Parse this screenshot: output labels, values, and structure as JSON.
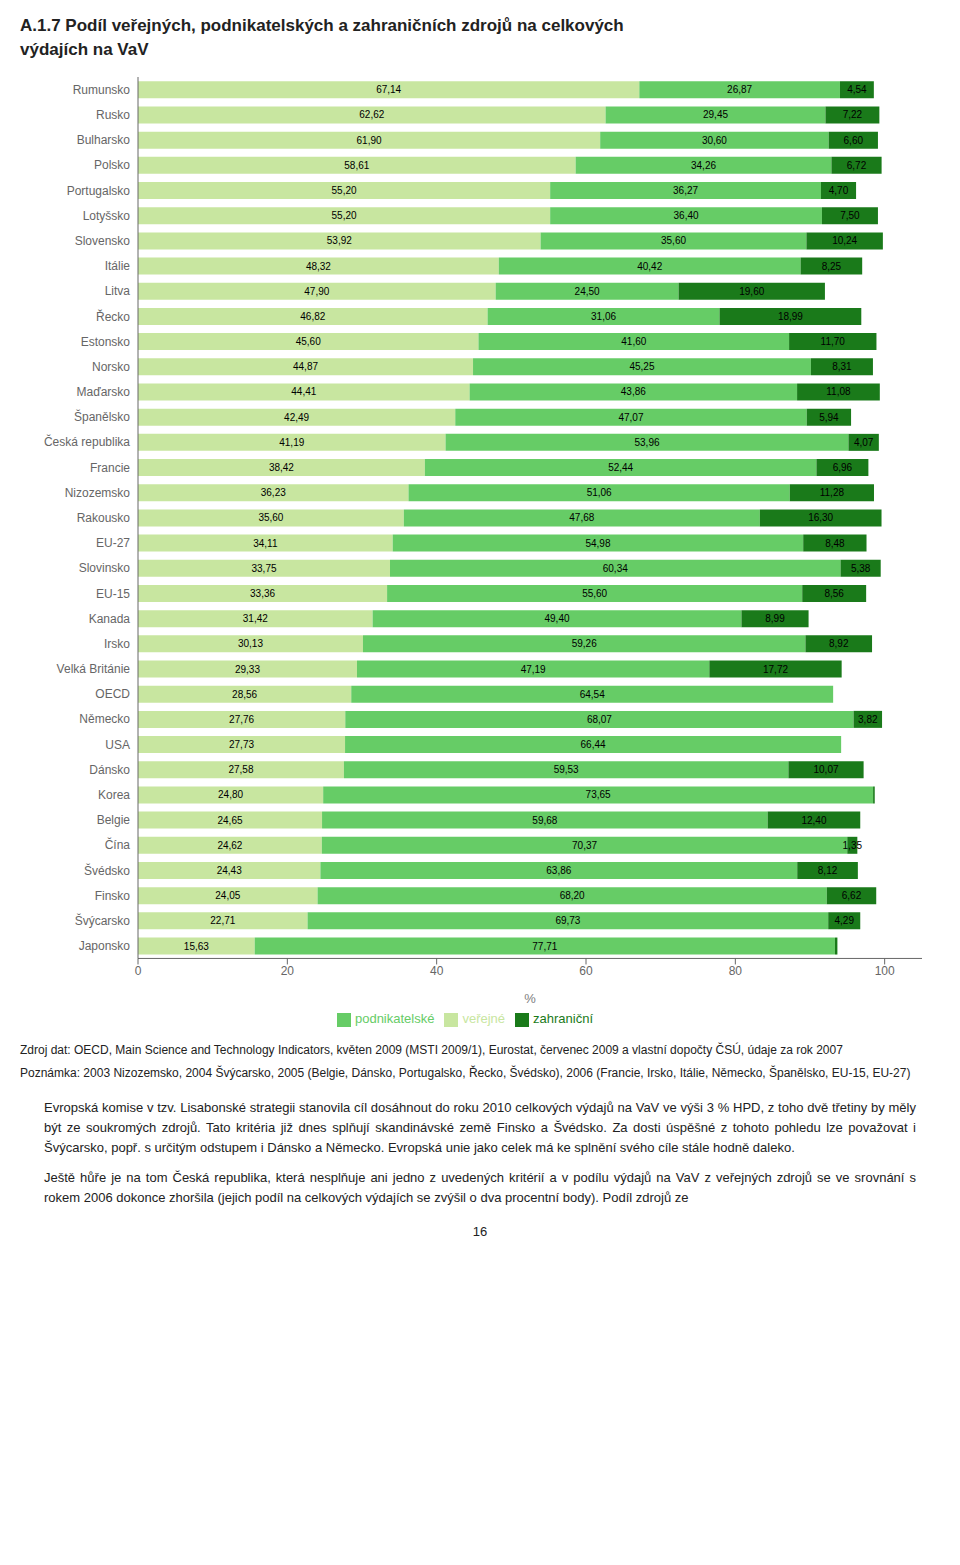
{
  "chart_data": {
    "type": "bar",
    "orientation": "horizontal",
    "stacked": true,
    "data_labels": true,
    "legend": "bottom",
    "grid": false,
    "title": [
      "A.1.7 Podíl veřejných, podnikatelských a zahraničních zdrojů na celkových",
      "výdajích na VaV"
    ],
    "xlabel": "%",
    "xlim": [
      0,
      105
    ],
    "xticks": [
      0,
      20,
      40,
      60,
      80,
      100
    ],
    "categories": [
      "Rumunsko",
      "Rusko",
      "Bulharsko",
      "Polsko",
      "Portugalsko",
      "Lotyšsko",
      "Slovensko",
      "Itálie",
      "Litva",
      "Řecko",
      "Estonsko",
      "Norsko",
      "Maďarsko",
      "Španělsko",
      "Česká republika",
      "Francie",
      "Nizozemsko",
      "Rakousko",
      "EU-27",
      "Slovinsko",
      "EU-15",
      "Kanada",
      "Irsko",
      "Velká Británie",
      "OECD",
      "Německo",
      "USA",
      "Dánsko",
      "Korea",
      "Belgie",
      "Čína",
      "Švédsko",
      "Finsko",
      "Švýcarsko",
      "Japonsko"
    ],
    "series": [
      {
        "name": "veřejné",
        "color": "#c8e6a0",
        "values": [
          67.14,
          62.62,
          61.9,
          58.61,
          55.2,
          55.2,
          53.92,
          48.32,
          47.9,
          46.82,
          45.6,
          44.87,
          44.41,
          42.49,
          41.19,
          38.42,
          36.23,
          35.6,
          34.11,
          33.75,
          33.36,
          31.42,
          30.13,
          29.33,
          28.56,
          27.76,
          27.73,
          27.58,
          24.8,
          24.65,
          24.62,
          24.43,
          24.05,
          22.71,
          15.63
        ],
        "value_labels": [
          "67,14",
          "62,62",
          "61,90",
          "58,61",
          "55,20",
          "55,20",
          "53,92",
          "48,32",
          "47,90",
          "46,82",
          "45,60",
          "44,87",
          "44,41",
          "42,49",
          "41,19",
          "38,42",
          "36,23",
          "35,60",
          "34,11",
          "33,75",
          "33,36",
          "31,42",
          "30,13",
          "29,33",
          "28,56",
          "27,76",
          "27,73",
          "27,58",
          "24,80",
          "24,65",
          "24,62",
          "24,43",
          "24,05",
          "22,71",
          "15,63"
        ]
      },
      {
        "name": "podnikatelské",
        "color": "#66cc66",
        "values": [
          26.87,
          29.45,
          30.6,
          34.26,
          36.27,
          36.4,
          35.6,
          40.42,
          24.5,
          31.06,
          41.6,
          45.25,
          43.86,
          47.07,
          53.96,
          52.44,
          51.06,
          47.68,
          54.98,
          60.34,
          55.6,
          49.4,
          59.26,
          47.19,
          64.54,
          68.07,
          66.44,
          59.53,
          73.65,
          59.68,
          70.37,
          63.86,
          68.2,
          69.73,
          77.71
        ],
        "value_labels": [
          "26,87",
          "29,45",
          "30,60",
          "34,26",
          "36,27",
          "36,40",
          "35,60",
          "40,42",
          "24,50",
          "31,06",
          "41,60",
          "45,25",
          "43,86",
          "47,07",
          "53,96",
          "52,44",
          "51,06",
          "47,68",
          "54,98",
          "60,34",
          "55,60",
          "49,40",
          "59,26",
          "47,19",
          "64,54",
          "68,07",
          "66,44",
          "59,53",
          "73,65",
          "59,68",
          "70,37",
          "63,86",
          "68,20",
          "69,73",
          "77,71"
        ]
      },
      {
        "name": "zahraniční",
        "color": "#1a7a1a",
        "values": [
          4.54,
          7.22,
          6.6,
          6.72,
          4.7,
          7.5,
          10.24,
          8.25,
          19.6,
          18.99,
          11.7,
          8.31,
          11.08,
          5.94,
          4.07,
          6.96,
          11.28,
          16.3,
          8.48,
          5.38,
          8.56,
          8.99,
          8.92,
          17.72,
          0.0,
          3.82,
          0.0,
          10.07,
          0.22,
          12.4,
          1.35,
          8.12,
          6.62,
          4.29,
          0.33
        ],
        "value_labels": [
          "4,54",
          "7,22",
          "6,60",
          "6,72",
          "4,70",
          "7,50",
          "10,24",
          "8,25",
          "19,60",
          "18,99",
          "11,70",
          "8,31",
          "11,08",
          "5,94",
          "4,07",
          "6,96",
          "11,28",
          "16,30",
          "8,48",
          "5,38",
          "8,56",
          "8,99",
          "8,92",
          "17,72",
          null,
          "3,82",
          null,
          "10,07",
          null,
          "12,40",
          "1,35",
          "8,12",
          "6,62",
          "4,29",
          null
        ]
      }
    ],
    "annotations": [
      "Zdroj dat: OECD, Main Science and Technology Indicators, květen 2009 (MSTI 2009/1), Eurostat, červenec 2009 a vlastní dopočty ČSÚ, údaje za rok 2007",
      "Poznámka: 2003 Nizozemsko, 2004 Švýcarsko, 2005 (Belgie, Dánsko, Portugalsko, Řecko, Švédsko), 2006 (Francie, Irsko, Itálie, Německo, Španělsko, EU-15, EU-27)",
      "Evropská komise v tzv. Lisabonské strategii stanovila cíl dosáhnout do roku 2010 celkových výdajů na VaV ve výši 3 % HPD, z toho dvě třetiny by měly být ze soukromých zdrojů. Tato kritéria již dnes splňují skandinávské země Finsko a Švédsko. Za dosti úspěšné z tohoto pohledu lze považovat i Švýcarsko, popř. s určitým odstupem i Dánsko a Německo. Evropská unie jako celek má ke splnění svého cíle stále hodně daleko.",
      "Ještě hůře je na tom Česká republika, která nesplňuje ani jedno z uvedených kritérií a v podílu výdajů na VaV z veřejných zdrojů se ve srovnání s rokem 2006 dokonce zhoršila (jejich podíl na celkových výdajích se zvýšil o dva procentní body). Podíl zdrojů ze",
      "16"
    ]
  }
}
